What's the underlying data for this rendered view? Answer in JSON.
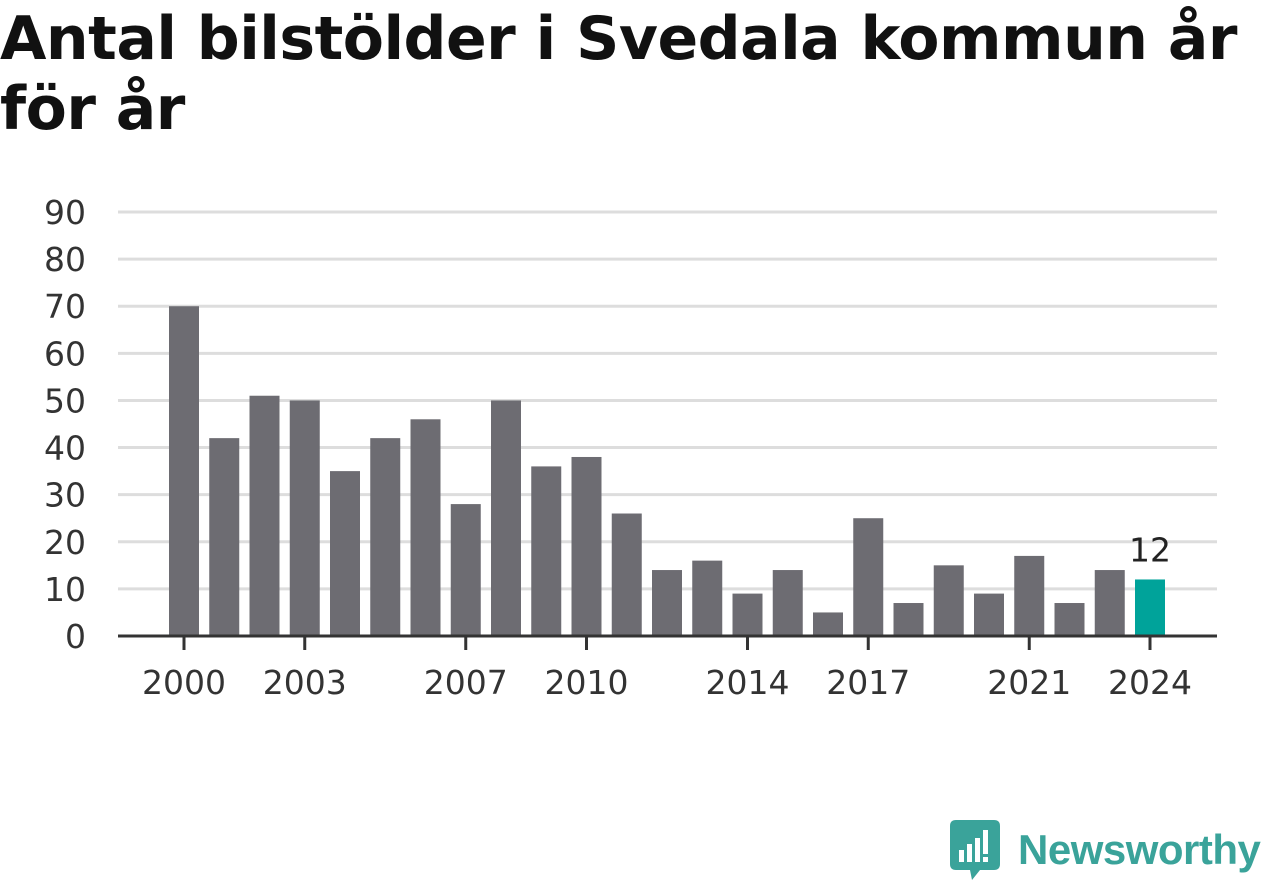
{
  "title": "Antal bilstölder i Svedala kommun år för år",
  "brand": {
    "name": "Newsworthy",
    "color": "#3aa39a",
    "icon": "newsworthy-logo-icon"
  },
  "colors": {
    "bar": "#6d6c72",
    "highlight": "#00a39a",
    "grid": "#dddddd",
    "axis": "#333333"
  },
  "chart_data": {
    "type": "bar",
    "title": "Antal bilstölder i Svedala kommun år för år",
    "xlabel": "",
    "ylabel": "",
    "ylim": [
      0,
      90
    ],
    "yticks": [
      0,
      10,
      20,
      30,
      40,
      50,
      60,
      70,
      80,
      90
    ],
    "xtick_labels": [
      "2000",
      "2003",
      "2007",
      "2010",
      "2014",
      "2017",
      "2021",
      "2024"
    ],
    "grid": true,
    "categories": [
      "2000",
      "2001",
      "2002",
      "2003",
      "2004",
      "2005",
      "2006",
      "2007",
      "2008",
      "2009",
      "2010",
      "2011",
      "2012",
      "2013",
      "2014",
      "2015",
      "2016",
      "2017",
      "2018",
      "2019",
      "2020",
      "2021",
      "2022",
      "2023",
      "2024"
    ],
    "values": [
      70,
      42,
      51,
      50,
      35,
      42,
      46,
      28,
      50,
      36,
      38,
      26,
      14,
      16,
      9,
      14,
      5,
      25,
      7,
      15,
      9,
      17,
      7,
      14,
      12
    ],
    "highlight": {
      "category": "2024",
      "label": "12"
    }
  }
}
